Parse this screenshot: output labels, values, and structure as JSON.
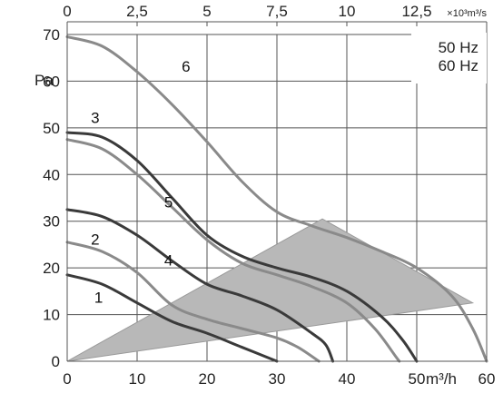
{
  "chart_data": {
    "type": "line",
    "x_axis": {
      "unit_label": "m³/h",
      "ticks": [
        "0",
        "10",
        "20",
        "30",
        "40",
        "50",
        "60"
      ],
      "range": [
        0,
        60
      ]
    },
    "top_axis": {
      "unit_label": "×10³m³/s",
      "ticks": [
        "0",
        "2,5",
        "5",
        "7,5",
        "10",
        "12,5"
      ],
      "range": [
        0,
        15
      ]
    },
    "y_axis": {
      "unit_label": "Pa",
      "ticks": [
        "0",
        "10",
        "20",
        "30",
        "40",
        "50",
        "60",
        "70"
      ],
      "range": [
        0,
        70
      ]
    },
    "legend": {
      "placement": "top-right",
      "entries": [
        "50 Hz",
        "60 Hz"
      ]
    },
    "grid": true,
    "operating_area": {
      "color": "#b8b8b8",
      "points": [
        [
          0,
          0
        ],
        [
          36.5,
          30.5
        ],
        [
          58,
          12.5
        ],
        [
          0,
          0
        ]
      ]
    },
    "series": [
      {
        "label": "1",
        "color": "#3a3a3a",
        "label_pos": [
          4.5,
          12.5
        ],
        "points": [
          [
            0,
            18.5
          ],
          [
            5,
            16.5
          ],
          [
            10,
            12.5
          ],
          [
            15,
            8.5
          ],
          [
            20,
            6
          ],
          [
            25,
            3
          ],
          [
            30,
            0
          ]
        ]
      },
      {
        "label": "2",
        "color": "#3a3a3a",
        "label_pos": [
          4,
          25
        ],
        "points": [
          [
            0,
            32.5
          ],
          [
            5,
            31
          ],
          [
            10,
            27
          ],
          [
            15,
            21.5
          ],
          [
            20,
            16.5
          ],
          [
            25,
            14
          ],
          [
            30,
            11
          ],
          [
            35,
            6
          ],
          [
            37,
            3.5
          ],
          [
            38,
            0
          ]
        ]
      },
      {
        "label": "3",
        "color": "#3a3a3a",
        "label_pos": [
          4,
          51
        ],
        "points": [
          [
            0,
            49
          ],
          [
            5,
            48
          ],
          [
            10,
            43
          ],
          [
            15,
            35
          ],
          [
            20,
            27
          ],
          [
            25,
            22.5
          ],
          [
            30,
            20
          ],
          [
            35,
            18
          ],
          [
            40,
            15
          ],
          [
            45,
            9.5
          ],
          [
            48,
            4.5
          ],
          [
            50,
            0
          ]
        ]
      },
      {
        "label": "4",
        "color": "#8a8a8a",
        "label_pos": [
          14.5,
          20.5
        ],
        "points": [
          [
            0,
            25.5
          ],
          [
            5,
            23.5
          ],
          [
            10,
            19
          ],
          [
            15,
            12
          ],
          [
            20,
            9
          ],
          [
            25,
            7
          ],
          [
            30,
            5
          ],
          [
            33,
            3
          ],
          [
            36,
            0
          ]
        ]
      },
      {
        "label": "5",
        "color": "#8a8a8a",
        "label_pos": [
          14.5,
          33
        ],
        "points": [
          [
            0,
            47.5
          ],
          [
            5,
            45.5
          ],
          [
            10,
            40
          ],
          [
            15,
            33
          ],
          [
            20,
            26
          ],
          [
            25,
            21
          ],
          [
            30,
            18.5
          ],
          [
            35,
            16
          ],
          [
            40,
            12.5
          ],
          [
            44,
            7
          ],
          [
            47,
            1
          ],
          [
            47.5,
            0
          ]
        ]
      },
      {
        "label": "6",
        "color": "#8a8a8a",
        "label_pos": [
          17,
          62
        ],
        "points": [
          [
            0,
            69.5
          ],
          [
            5,
            67.5
          ],
          [
            10,
            62
          ],
          [
            15,
            55
          ],
          [
            20,
            47
          ],
          [
            25,
            38.5
          ],
          [
            30,
            32
          ],
          [
            35,
            29
          ],
          [
            40,
            26.5
          ],
          [
            45,
            23.5
          ],
          [
            50,
            20
          ],
          [
            55,
            14
          ],
          [
            58,
            7
          ],
          [
            60,
            0
          ]
        ]
      }
    ]
  }
}
